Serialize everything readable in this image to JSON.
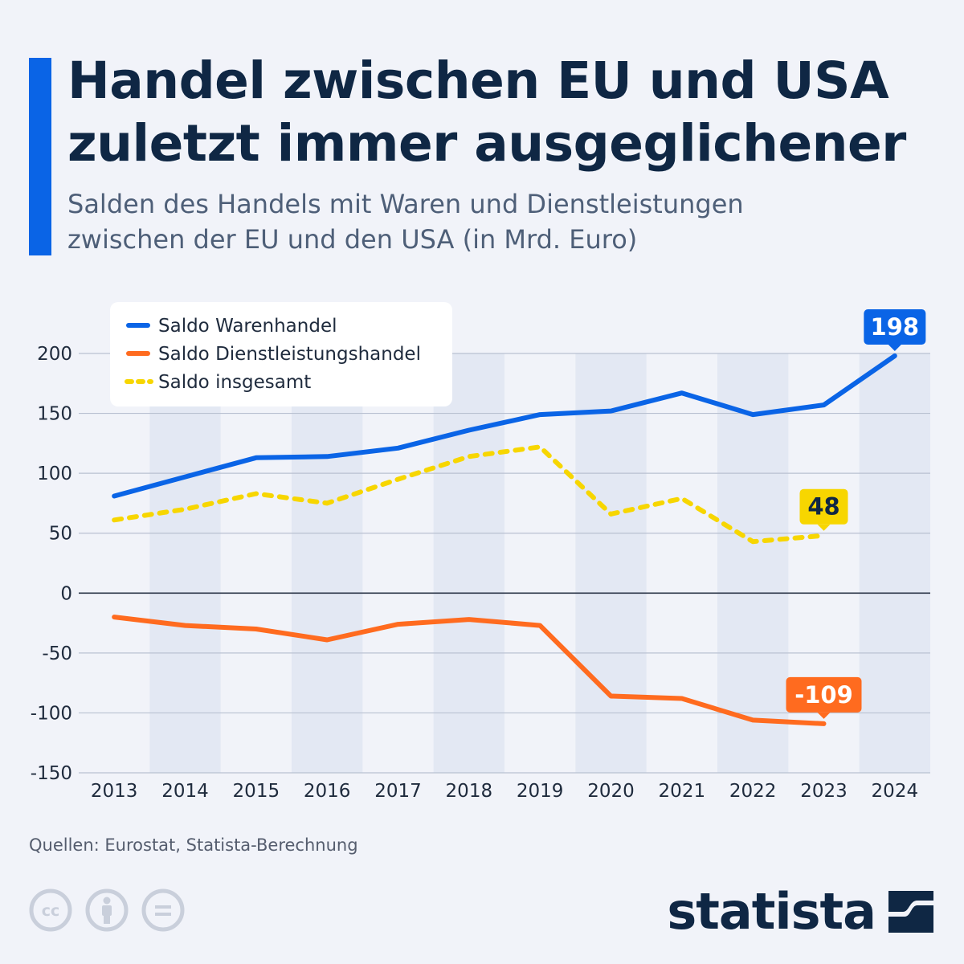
{
  "header": {
    "title_line1": "Handel zwischen EU und USA",
    "title_line2": "zuletzt immer ausgeglichener",
    "subtitle_line1": "Salden des Handels mit Waren und Dienstleistungen",
    "subtitle_line2": "zwischen der EU und den USA (in Mrd. Euro)"
  },
  "chart_data": {
    "type": "line",
    "categories": [
      "2013",
      "2014",
      "2015",
      "2016",
      "2017",
      "2018",
      "2019",
      "2020",
      "2021",
      "2022",
      "2023",
      "2024"
    ],
    "ylim": [
      -150,
      200
    ],
    "yticks": [
      200,
      150,
      100,
      50,
      0,
      -50,
      -100,
      -150
    ],
    "grid": true,
    "legend_position": "top-left",
    "series": [
      {
        "name": "Saldo Warenhandel",
        "color": "#0a64e6",
        "style": "solid",
        "values": [
          81,
          97,
          113,
          114,
          121,
          136,
          149,
          152,
          167,
          149,
          157,
          198
        ]
      },
      {
        "name": "Saldo Dienstleistungshandel",
        "color": "#ff6b1f",
        "style": "solid",
        "values": [
          -20,
          -27,
          -30,
          -39,
          -26,
          -22,
          -27,
          -86,
          -88,
          -106,
          -109,
          null
        ]
      },
      {
        "name": "Saldo insgesamt",
        "color": "#f7d600",
        "style": "dotted",
        "values": [
          61,
          70,
          83,
          75,
          95,
          114,
          122,
          66,
          79,
          43,
          48,
          null
        ]
      }
    ],
    "annotations": [
      {
        "label": "198",
        "series": 0,
        "index": 11,
        "bg": "#0a64e6",
        "fg": "#ffffff"
      },
      {
        "label": "48",
        "series": 2,
        "index": 10,
        "bg": "#f7d600",
        "fg": "#0f2744"
      },
      {
        "label": "-109",
        "series": 1,
        "index": 10,
        "bg": "#ff6b1f",
        "fg": "#ffffff"
      }
    ]
  },
  "footer": {
    "source": "Quellen: Eurostat, Statista-Berechnung",
    "brand": "statista"
  },
  "icons": [
    "cc-icon",
    "attribution-icon",
    "noderivs-icon",
    "statista-logo-icon"
  ]
}
